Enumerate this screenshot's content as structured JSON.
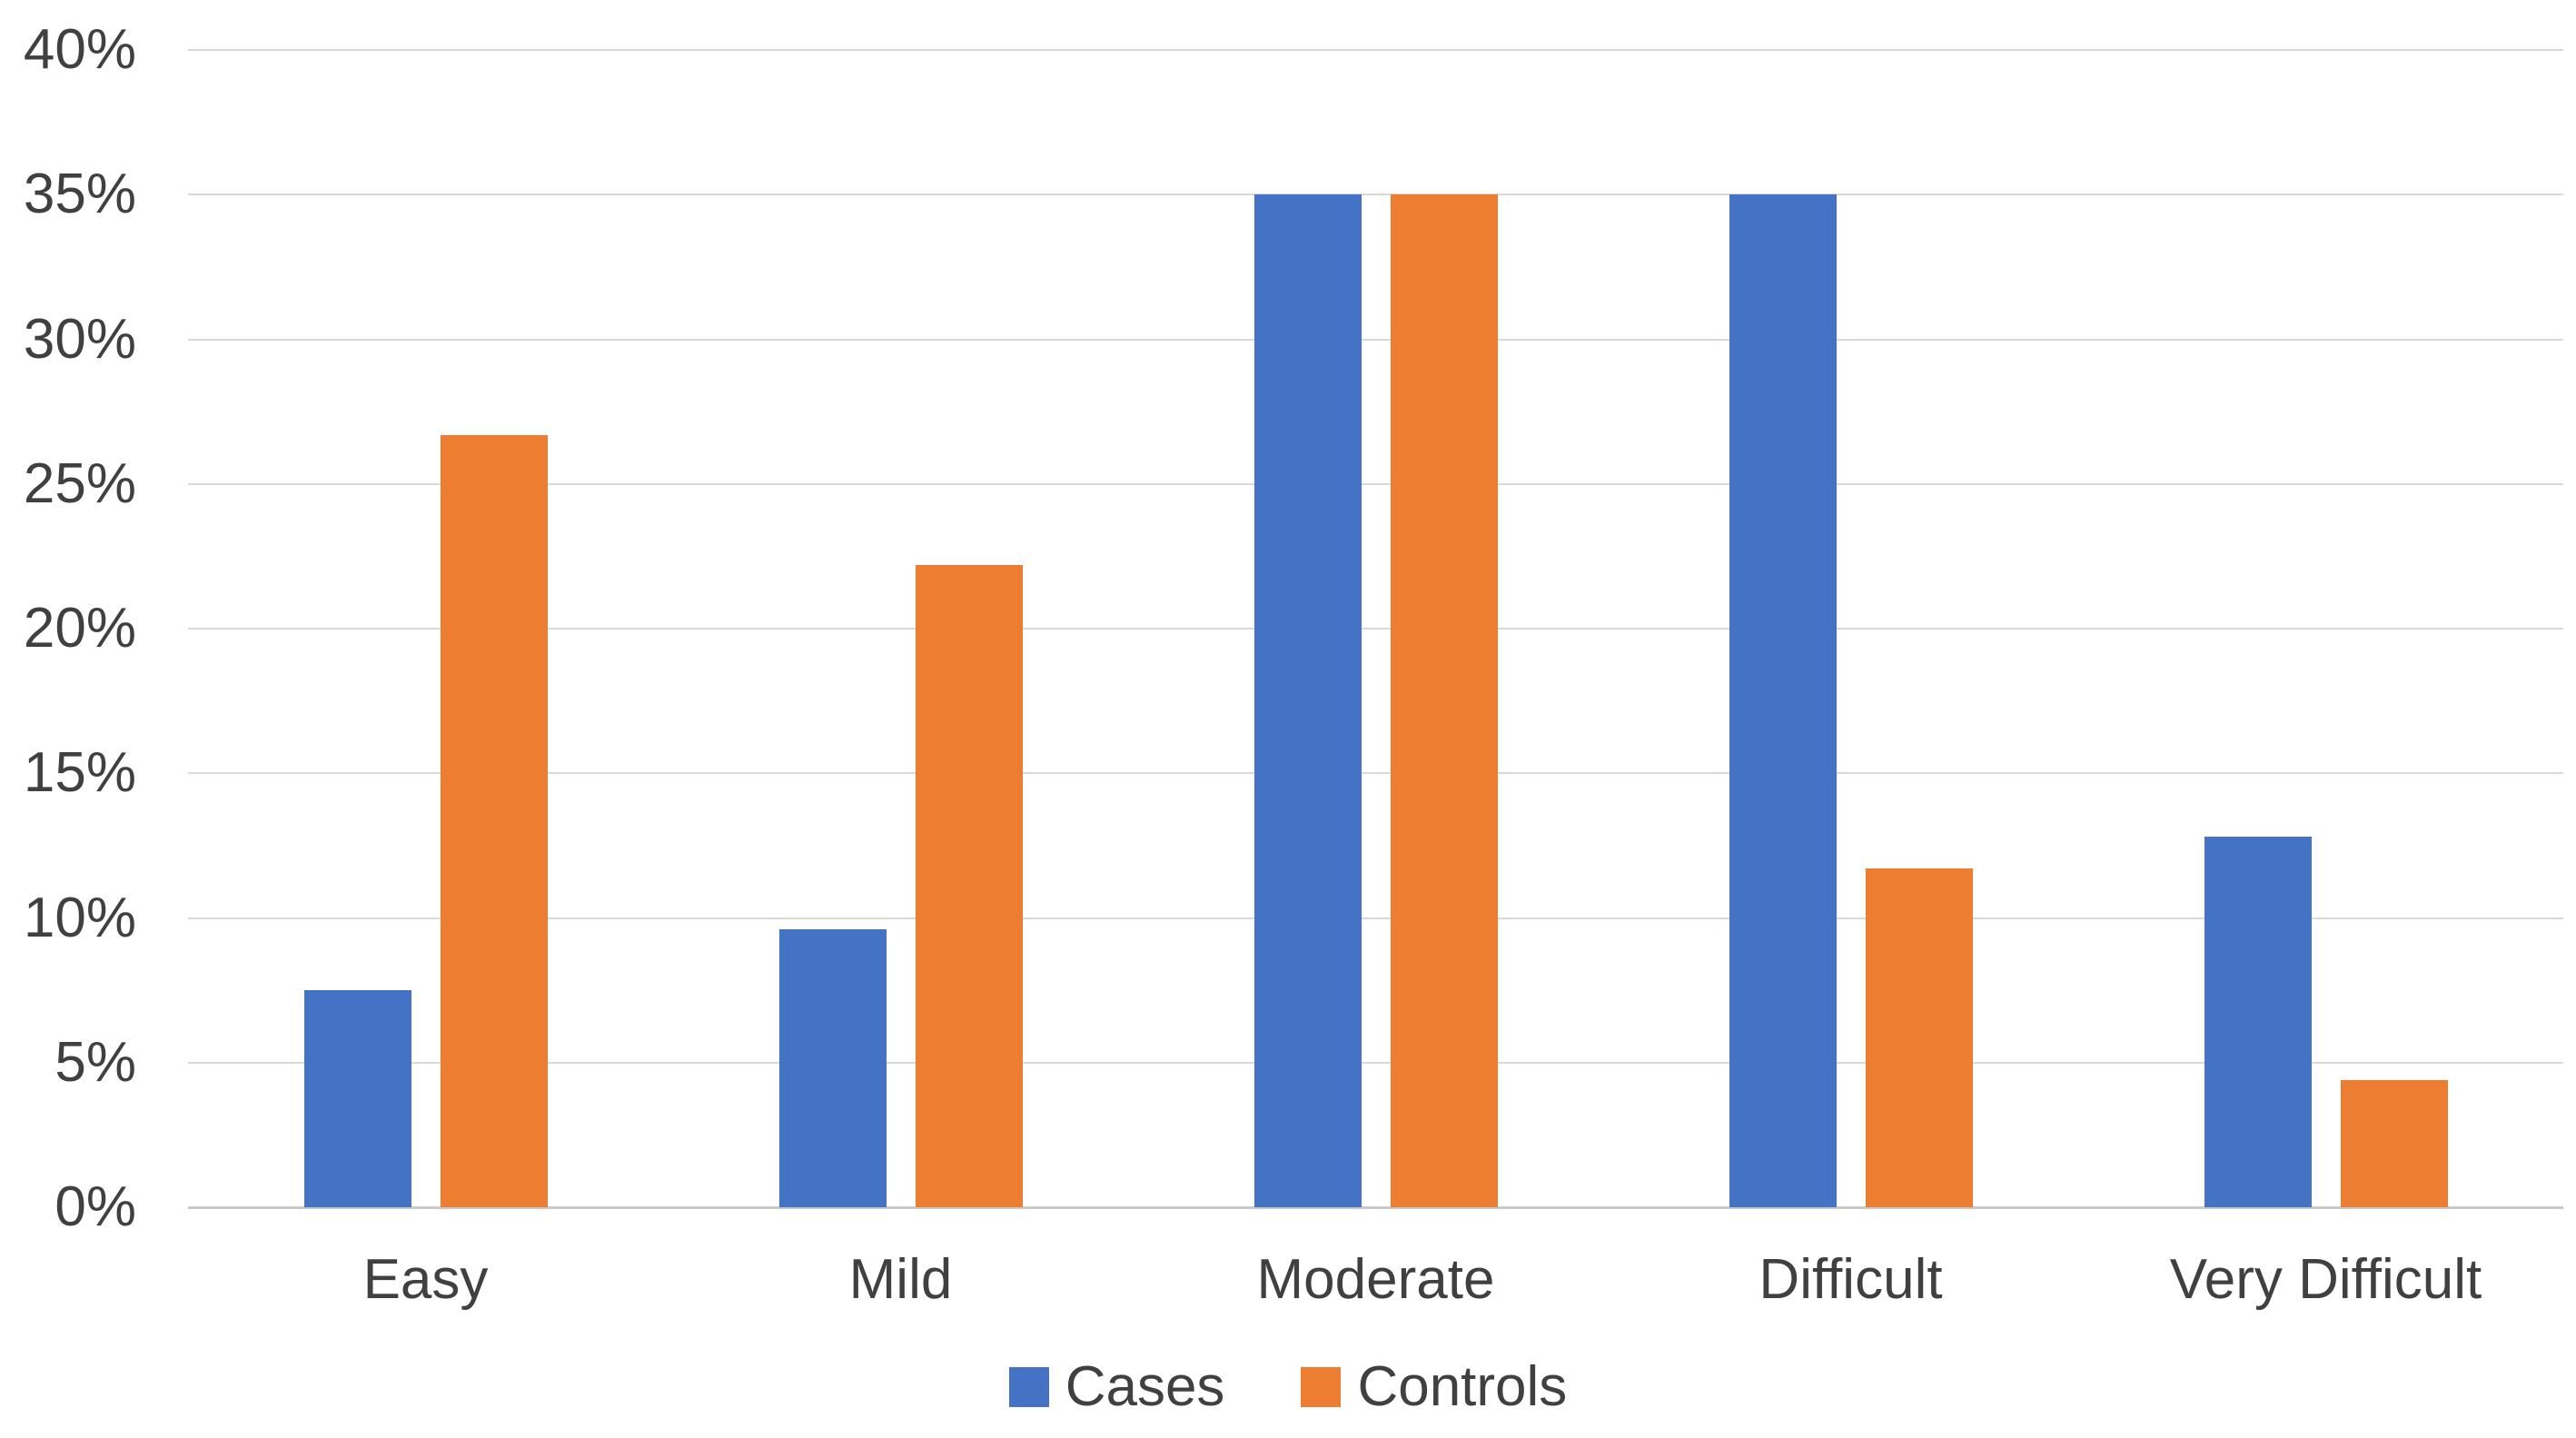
{
  "chart_data": {
    "type": "bar",
    "title": "",
    "xlabel": "",
    "ylabel": "",
    "categories": [
      "Easy",
      "Mild",
      "Moderate",
      "Difficult",
      "Very Difficult"
    ],
    "series": [
      {
        "name": "Cases",
        "color": "#4472C4",
        "values": [
          7.5,
          9.6,
          35.0,
          35.0,
          12.8
        ]
      },
      {
        "name": "Controls",
        "color": "#ED7D31",
        "values": [
          26.7,
          22.2,
          35.0,
          11.7,
          4.4
        ]
      }
    ],
    "y_axis": {
      "min": 0,
      "max": 40,
      "step": 5,
      "tick_labels": [
        "0%",
        "5%",
        "10%",
        "15%",
        "20%",
        "25%",
        "30%",
        "35%",
        "40%"
      ],
      "format": "percent"
    },
    "grid": true,
    "legend_position": "bottom",
    "colors": {
      "background": "#FFFFFF",
      "gridline": "#D9D9D9",
      "axis_line": "#C9C9C9",
      "text": "#404040"
    }
  }
}
